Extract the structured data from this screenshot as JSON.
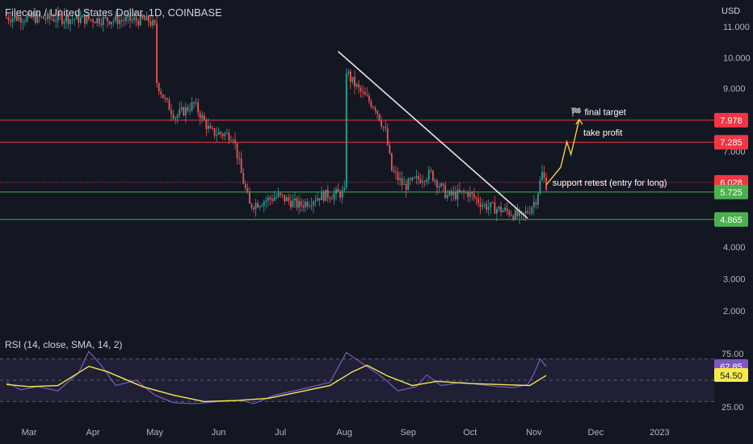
{
  "symbol_title": "Filecoin / United States Dollar, 1D, COINBASE",
  "currency": "USD",
  "rsi_title": "RSI (14, close, SMA, 14, 2)",
  "colors": {
    "background": "#131722",
    "up_candle": "#26a69a",
    "down_candle": "#ef5350",
    "red_level": "#f23645",
    "green_level": "#4caf50",
    "rsi_line": "#7e57c2",
    "rsi_ma": "#f5e94b",
    "trendline": "#e6e6e6",
    "projection": "#f7c948"
  },
  "chart_data": [
    {
      "type": "candlestick",
      "price_axis": {
        "scale": "linear",
        "ticks": [
          "11.000",
          "10.000",
          "9.000",
          "8.000",
          "7.000",
          "4.000",
          "3.000",
          "2.000"
        ],
        "range": [
          1.4,
          11.6
        ]
      },
      "time_axis": {
        "ticks": [
          "Mar",
          "Apr",
          "May",
          "Jun",
          "Jul",
          "Aug",
          "Sep",
          "Oct",
          "Nov",
          "Dec",
          "2023"
        ],
        "start": "2022-02-18",
        "end": "2023-01-10"
      },
      "price_path": [
        [
          "2022-02-18",
          11.3
        ],
        [
          "2022-04-28",
          11.2
        ],
        [
          "2022-05-01",
          11.0
        ],
        [
          "2022-05-02",
          9.2
        ],
        [
          "2022-05-06",
          8.6
        ],
        [
          "2022-05-11",
          8.1
        ],
        [
          "2022-05-20",
          8.5
        ],
        [
          "2022-05-28",
          7.6
        ],
        [
          "2022-06-08",
          7.5
        ],
        [
          "2022-06-12",
          6.3
        ],
        [
          "2022-06-16",
          5.3
        ],
        [
          "2022-06-30",
          5.6
        ],
        [
          "2022-07-10",
          5.3
        ],
        [
          "2022-07-20",
          5.6
        ],
        [
          "2022-08-01",
          5.7
        ],
        [
          "2022-08-02",
          9.6
        ],
        [
          "2022-08-04",
          9.3
        ],
        [
          "2022-08-10",
          8.8
        ],
        [
          "2022-08-16",
          8.4
        ],
        [
          "2022-08-21",
          7.6
        ],
        [
          "2022-08-24",
          6.4
        ],
        [
          "2022-08-30",
          5.9
        ],
        [
          "2022-09-05",
          6.1
        ],
        [
          "2022-09-12",
          6.3
        ],
        [
          "2022-09-20",
          5.6
        ],
        [
          "2022-09-30",
          5.7
        ],
        [
          "2022-10-08",
          5.3
        ],
        [
          "2022-10-20",
          5.1
        ],
        [
          "2022-10-26",
          4.92
        ],
        [
          "2022-10-30",
          5.2
        ],
        [
          "2022-11-02",
          5.5
        ],
        [
          "2022-11-05",
          6.3
        ],
        [
          "2022-11-07",
          5.95
        ]
      ],
      "levels": [
        {
          "price": 7.978,
          "label": "7.978",
          "color": "#f23645"
        },
        {
          "price": 7.285,
          "label": "7.285",
          "color": "#f23645"
        },
        {
          "price": 6.028,
          "label": "6.028",
          "color": "#f23645",
          "style": "dotted"
        },
        {
          "price": 5.725,
          "label": "5.725",
          "color": "#4caf50"
        },
        {
          "price": 4.865,
          "label": "4.865",
          "color": "#4caf50"
        }
      ],
      "trendline": {
        "from": [
          "2022-07-29",
          10.2
        ],
        "to": [
          "2022-10-29",
          4.9
        ]
      },
      "projection_path": [
        [
          "2022-11-07",
          5.95
        ],
        [
          "2022-11-14",
          6.5
        ],
        [
          "2022-11-17",
          7.3
        ],
        [
          "2022-11-19",
          6.9
        ],
        [
          "2022-11-23",
          8.0
        ]
      ],
      "annotations": [
        {
          "text": "🏁 final target",
          "anchor": [
            "2022-11-19",
            8.15
          ]
        },
        {
          "text": "take profit",
          "anchor": [
            "2022-11-25",
            7.5
          ]
        },
        {
          "text": "support retest (entry for long)",
          "anchor": [
            "2022-11-10",
            5.92
          ]
        }
      ]
    },
    {
      "type": "line",
      "name": "RSI (14, close, SMA, 14, 2)",
      "y_ticks": [
        "75.00",
        "25.00"
      ],
      "ylim": [
        20,
        85
      ],
      "overbought": 70,
      "oversold": 30,
      "last_values": {
        "rsi": "62.85",
        "rsi_ma": "54.50"
      },
      "rsi_path": [
        [
          "2022-02-18",
          48
        ],
        [
          "2022-02-25",
          41
        ],
        [
          "2022-03-05",
          44
        ],
        [
          "2022-03-15",
          40
        ],
        [
          "2022-03-25",
          57
        ],
        [
          "2022-03-30",
          77
        ],
        [
          "2022-04-05",
          64
        ],
        [
          "2022-04-12",
          45
        ],
        [
          "2022-04-22",
          50
        ],
        [
          "2022-05-01",
          36
        ],
        [
          "2022-05-10",
          29
        ],
        [
          "2022-05-20",
          28
        ],
        [
          "2022-06-01",
          30
        ],
        [
          "2022-06-12",
          31
        ],
        [
          "2022-06-18",
          28
        ],
        [
          "2022-06-28",
          36
        ],
        [
          "2022-07-10",
          41
        ],
        [
          "2022-07-25",
          48
        ],
        [
          "2022-08-02",
          76
        ],
        [
          "2022-08-08",
          68
        ],
        [
          "2022-08-15",
          59
        ],
        [
          "2022-08-20",
          52
        ],
        [
          "2022-08-27",
          40
        ],
        [
          "2022-09-05",
          44
        ],
        [
          "2022-09-10",
          55
        ],
        [
          "2022-09-17",
          45
        ],
        [
          "2022-09-27",
          48
        ],
        [
          "2022-10-05",
          46
        ],
        [
          "2022-10-15",
          44
        ],
        [
          "2022-10-22",
          43
        ],
        [
          "2022-10-29",
          46
        ],
        [
          "2022-11-01",
          56
        ],
        [
          "2022-11-04",
          70
        ],
        [
          "2022-11-07",
          62.85
        ]
      ],
      "rsi_ma_path": [
        [
          "2022-02-18",
          46
        ],
        [
          "2022-03-01",
          44
        ],
        [
          "2022-03-15",
          45
        ],
        [
          "2022-03-30",
          63
        ],
        [
          "2022-04-08",
          58
        ],
        [
          "2022-04-25",
          44
        ],
        [
          "2022-05-10",
          36
        ],
        [
          "2022-05-25",
          30
        ],
        [
          "2022-06-10",
          31
        ],
        [
          "2022-06-25",
          33
        ],
        [
          "2022-07-10",
          39
        ],
        [
          "2022-07-25",
          45
        ],
        [
          "2022-08-05",
          58
        ],
        [
          "2022-08-12",
          64
        ],
        [
          "2022-08-22",
          54
        ],
        [
          "2022-09-03",
          45
        ],
        [
          "2022-09-15",
          49
        ],
        [
          "2022-09-30",
          47
        ],
        [
          "2022-10-15",
          46
        ],
        [
          "2022-10-30",
          45
        ],
        [
          "2022-11-07",
          54.5
        ]
      ]
    }
  ]
}
